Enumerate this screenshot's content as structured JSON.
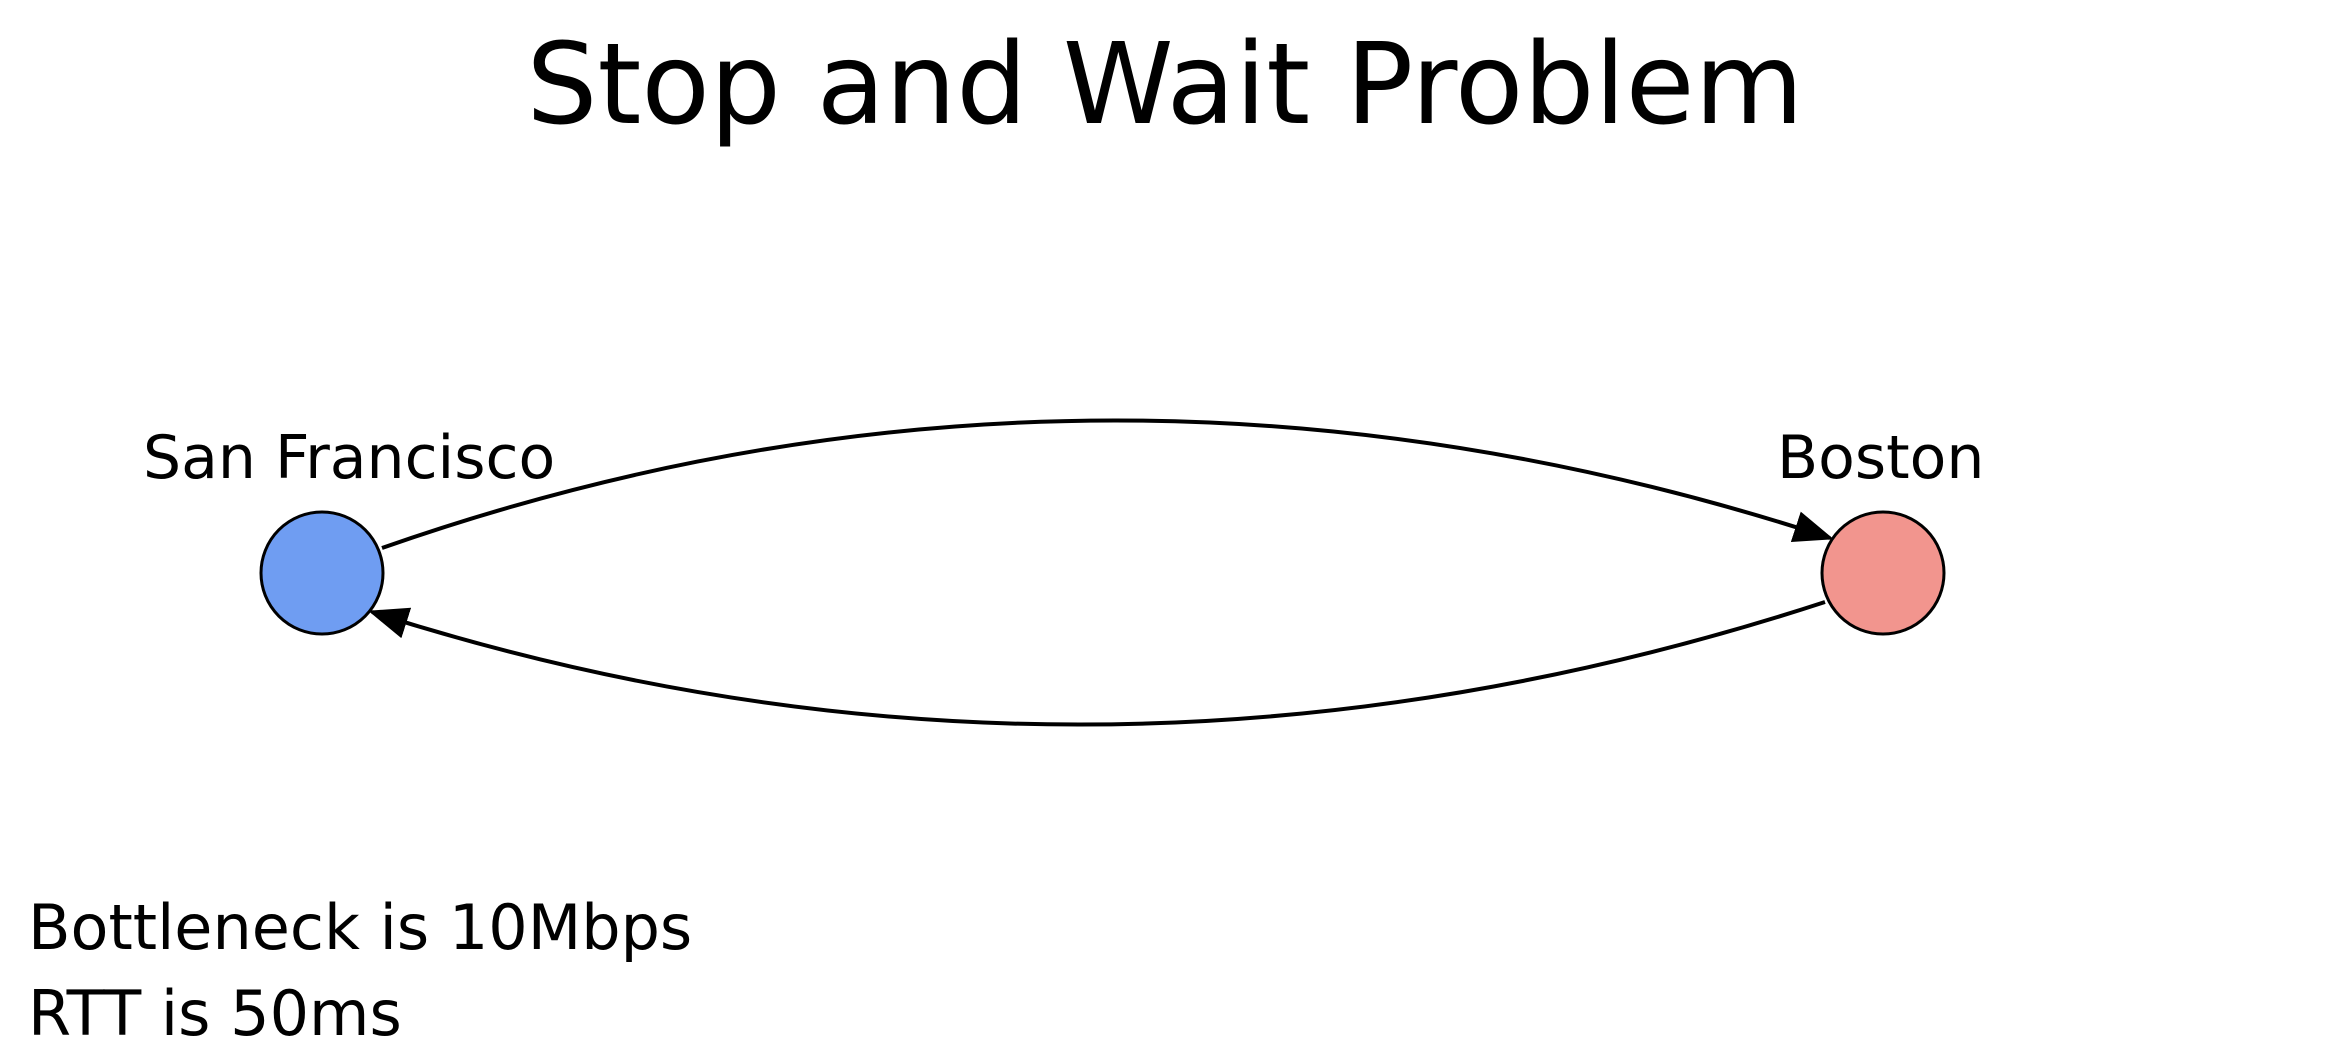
{
  "slide": {
    "title": "Stop and Wait Problem"
  },
  "nodes": {
    "sender": {
      "label": "San Francisco",
      "color": "#6f9df2"
    },
    "receiver": {
      "label": "Boston",
      "color": "#f2958e"
    }
  },
  "notes": {
    "bottleneck": "Bottleneck is 10Mbps",
    "rtt": "RTT is 50ms"
  }
}
